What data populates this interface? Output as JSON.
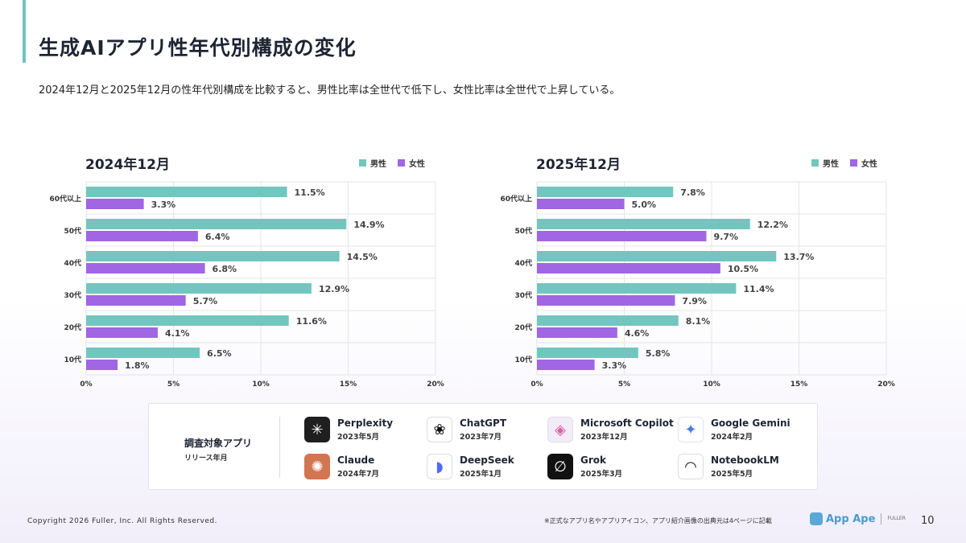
{
  "header": {
    "title": "生成AIアプリ性年代別構成の変化",
    "subtitle": "2024年12月と2025年12月の性年代別構成を比較すると、男性比率は全世代で低下し、女性比率は全世代で上昇している。"
  },
  "colors": {
    "male": "#72c6bf",
    "female": "#a066e3",
    "accent": "#6fc4bd"
  },
  "chart_data": [
    {
      "type": "bar",
      "orientation": "horizontal",
      "title": "2024年12月",
      "categories": [
        "60代以上",
        "50代",
        "40代",
        "30代",
        "20代",
        "10代"
      ],
      "series": [
        {
          "name": "男性",
          "values": [
            11.5,
            14.9,
            14.5,
            12.9,
            11.6,
            6.5
          ],
          "labels": [
            "11.5%",
            "14.9%",
            "14.5%",
            "12.9%",
            "11.6%",
            "6.5%"
          ]
        },
        {
          "name": "女性",
          "values": [
            3.3,
            6.4,
            6.8,
            5.7,
            4.1,
            1.8
          ],
          "labels": [
            "3.3%",
            "6.4%",
            "6.8%",
            "5.7%",
            "4.1%",
            "1.8%"
          ]
        }
      ],
      "xlim": [
        0,
        20
      ],
      "xticks": [
        "0%",
        "5%",
        "10%",
        "15%",
        "20%"
      ],
      "grid": true,
      "legend": "top-right"
    },
    {
      "type": "bar",
      "orientation": "horizontal",
      "title": "2025年12月",
      "categories": [
        "60代以上",
        "50代",
        "40代",
        "30代",
        "20代",
        "10代"
      ],
      "series": [
        {
          "name": "男性",
          "values": [
            7.8,
            12.2,
            13.7,
            11.4,
            8.1,
            5.8
          ],
          "labels": [
            "7.8%",
            "12.2%",
            "13.7%",
            "11.4%",
            "8.1%",
            "5.8%"
          ]
        },
        {
          "name": "女性",
          "values": [
            5.0,
            9.7,
            10.5,
            7.9,
            4.6,
            3.3
          ],
          "labels": [
            "5.0%",
            "9.7%",
            "10.5%",
            "7.9%",
            "4.6%",
            "3.3%"
          ]
        }
      ],
      "xlim": [
        0,
        20
      ],
      "xticks": [
        "0%",
        "5%",
        "10%",
        "15%",
        "20%"
      ],
      "grid": true,
      "legend": "top-right"
    }
  ],
  "panel": {
    "label_line1": "調査対象アプリ",
    "label_line2": "リリース年月",
    "apps": [
      {
        "name": "Perplexity",
        "date": "2023年5月",
        "icon": "perplexity-icon",
        "glyph": "✳"
      },
      {
        "name": "ChatGPT",
        "date": "2023年7月",
        "icon": "chatgpt-icon",
        "glyph": "❀"
      },
      {
        "name": "Microsoft Copilot",
        "date": "2023年12月",
        "icon": "copilot-icon",
        "glyph": "◈"
      },
      {
        "name": "Google Gemini",
        "date": "2024年2月",
        "icon": "gemini-icon",
        "glyph": "✦"
      },
      {
        "name": "Claude",
        "date": "2024年7月",
        "icon": "claude-icon",
        "glyph": "✺"
      },
      {
        "name": "DeepSeek",
        "date": "2025年1月",
        "icon": "deepseek-icon",
        "glyph": "◗"
      },
      {
        "name": "Grok",
        "date": "2025年3月",
        "icon": "grok-icon",
        "glyph": "∅"
      },
      {
        "name": "NotebookLM",
        "date": "2025年5月",
        "icon": "notebooklm-icon",
        "glyph": "◠"
      }
    ]
  },
  "footer": {
    "copyright": "Copyright 2026 Fuller, Inc. All Rights Reserved.",
    "note": "※正式なアプリ名やアプリアイコン、アプリ紹介画像の出典元は4ページに記載",
    "logo": "App Ape",
    "logo_sub": "FULLER",
    "page_number": "10"
  }
}
